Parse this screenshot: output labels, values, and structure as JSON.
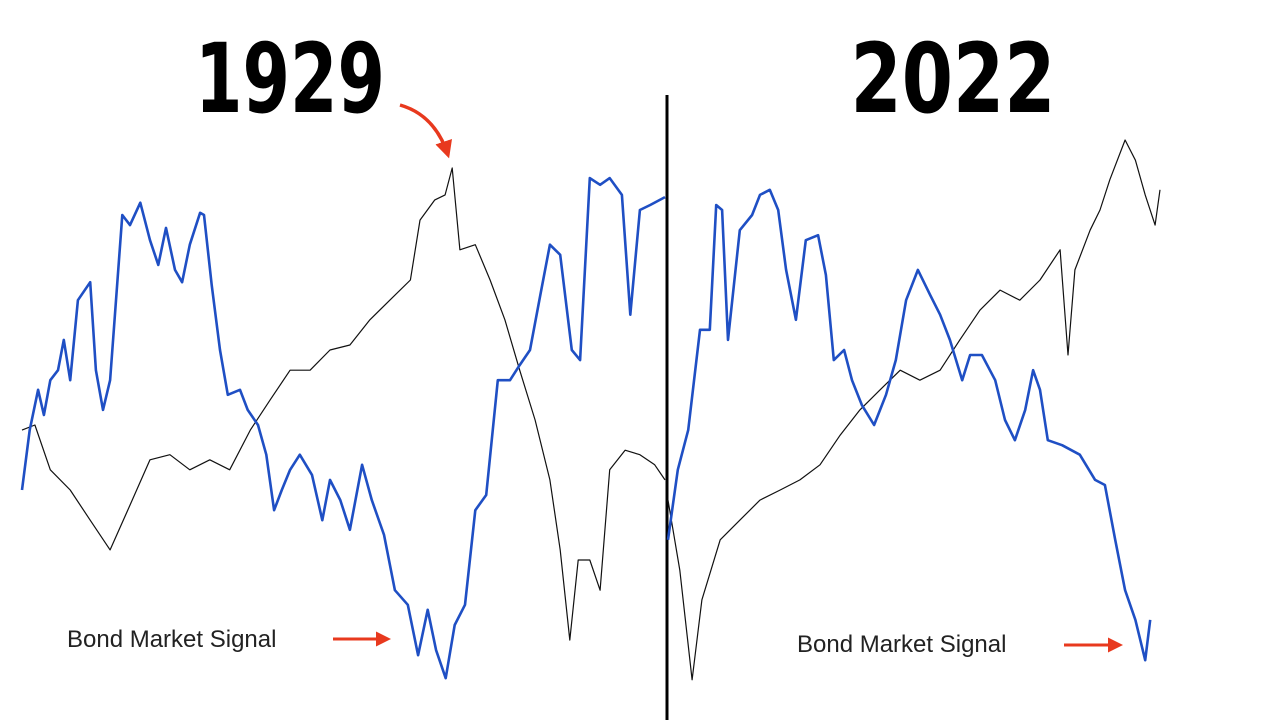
{
  "chart_data": [
    {
      "type": "line",
      "title": "1929",
      "annotation": "Bond Market Signal",
      "xlim": [
        0,
        100
      ],
      "ylim": [
        0,
        100
      ],
      "series": [
        {
          "color": "#1f4fc4",
          "x": [
            0,
            1.2,
            2.5,
            3.4,
            4.4,
            5.6,
            6.5,
            7.5,
            8.7,
            10.6,
            11.5,
            12.6,
            13.7,
            15.6,
            16.8,
            18.4,
            19.9,
            21.2,
            22.4,
            23.8,
            24.9,
            26.1,
            27.7,
            28.3,
            29.5,
            30.8,
            32,
            33.9,
            35.1,
            36.7,
            38,
            39.2,
            40.4,
            41.7,
            43.2,
            45.1,
            46.7,
            47.9,
            49.5,
            51,
            52.9,
            54.4,
            56.3,
            58,
            60,
            61.6,
            63.1,
            64.4,
            65.9,
            67.3,
            68.9,
            70.5,
            72.2,
            74,
            75.9,
            77.4,
            79,
            80.6,
            82.1,
            83.7,
            85.5,
            86.8,
            88.3,
            89.9,
            91.4,
            93.3,
            94.6,
            96.1,
            97.7,
            100
          ],
          "values": [
            37.5,
            48.2,
            55.4,
            50.9,
            57.1,
            58.9,
            64.3,
            57.1,
            71.4,
            74.6,
            58.9,
            51.8,
            57.1,
            86.6,
            84.8,
            88.8,
            82.1,
            77.7,
            84.3,
            76.8,
            74.6,
            81.3,
            87,
            86.6,
            74.1,
            62.5,
            54.5,
            55.4,
            51.8,
            49.1,
            43.8,
            33.9,
            37.5,
            41.1,
            43.8,
            40.2,
            32.1,
            39.3,
            35.7,
            30.4,
            42,
            35.7,
            29.5,
            19.6,
            17,
            8,
            16.1,
            8.9,
            3.9,
            13.4,
            17,
            33.9,
            36.6,
            57.1,
            57.1,
            59.8,
            62.5,
            72.3,
            81.3,
            79.5,
            62.5,
            60.7,
            93.2,
            92,
            93.2,
            90.2,
            68.8,
            87.5,
            88.4,
            89.8
          ]
        },
        {
          "color": "#111111",
          "x": [
            0,
            2,
            4.4,
            7.5,
            10.6,
            13.7,
            16.8,
            19.9,
            23,
            26.1,
            29.2,
            32.3,
            35.5,
            38.6,
            41.7,
            44.8,
            47.9,
            51,
            54.1,
            57.2,
            60.4,
            61.9,
            64.2,
            65.8,
            66.9,
            68.1,
            70.5,
            72.8,
            75.1,
            77.4,
            79.8,
            82.1,
            83.7,
            85.2,
            86.5,
            88.3,
            89.9,
            91.4,
            93.8,
            96.1,
            98.4,
            100
          ],
          "values": [
            48.2,
            49.1,
            41.1,
            37.5,
            32.1,
            26.8,
            34.8,
            42.9,
            43.8,
            41.1,
            42.9,
            41.1,
            48.2,
            53.6,
            58.9,
            58.9,
            62.5,
            63.4,
            67.9,
            71.4,
            75,
            85.7,
            89.3,
            90.2,
            95,
            80.4,
            81.3,
            75,
            67.9,
            58.9,
            50,
            39.3,
            26.8,
            10.7,
            25,
            25,
            19.6,
            41.1,
            44.6,
            43.8,
            42,
            39.3
          ]
        }
      ]
    },
    {
      "type": "line",
      "title": "2022",
      "annotation": "Bond Market Signal",
      "xlim": [
        0,
        100
      ],
      "ylim": [
        0,
        100
      ],
      "series": [
        {
          "color": "#1f4fc4",
          "x": [
            0,
            2,
            4.1,
            6.5,
            8.5,
            9.8,
            11,
            12.2,
            14.6,
            17.1,
            18.7,
            20.7,
            22.4,
            24,
            26,
            28,
            30.5,
            32.1,
            33.7,
            35.8,
            37.4,
            39.4,
            41.9,
            44.3,
            46.3,
            48.4,
            50.8,
            53.3,
            55.3,
            57.3,
            59.8,
            61.4,
            63.8,
            66.5,
            68.5,
            70.5,
            72.6,
            74.2,
            75.6,
            77.2,
            80.1,
            83.7,
            86.8,
            88.8,
            90.9,
            92.9,
            95,
            97,
            98
          ],
          "values": [
            28.6,
            41.1,
            48.2,
            66.1,
            66.1,
            88.4,
            87.5,
            64.3,
            83.9,
            86.6,
            90.2,
            91.1,
            87.5,
            76.8,
            67.9,
            82.1,
            83,
            75.9,
            60.7,
            62.5,
            57.1,
            52.7,
            49.1,
            54.5,
            60.7,
            71.4,
            76.8,
            72.3,
            68.8,
            64.3,
            57.1,
            61.6,
            61.6,
            57.1,
            50,
            46.4,
            51.8,
            58.9,
            55.4,
            46.4,
            45.5,
            43.8,
            39.3,
            38.4,
            28.6,
            19.6,
            14.3,
            7.1,
            14.3
          ]
        },
        {
          "color": "#111111",
          "x": [
            0,
            2.4,
            4.9,
            6.9,
            10.6,
            14.6,
            18.7,
            22.8,
            26.8,
            30.9,
            35,
            39,
            43.1,
            47.2,
            51.2,
            55.3,
            59.3,
            63.4,
            67.5,
            71.5,
            75.6,
            79.7,
            81.3,
            82.7,
            85.8,
            87.8,
            89.8,
            92.9,
            95,
            97,
            99,
            100
          ],
          "values": [
            35.7,
            23.2,
            3.6,
            17.9,
            28.6,
            32.1,
            35.7,
            37.5,
            39.3,
            42,
            47.3,
            51.8,
            55.4,
            58.9,
            57.1,
            58.9,
            64.3,
            69.6,
            73.2,
            71.4,
            75,
            80.4,
            61.6,
            76.8,
            83.9,
            87.5,
            92.9,
            100,
            96.4,
            90.2,
            84.8,
            91.1
          ]
        }
      ]
    }
  ]
}
